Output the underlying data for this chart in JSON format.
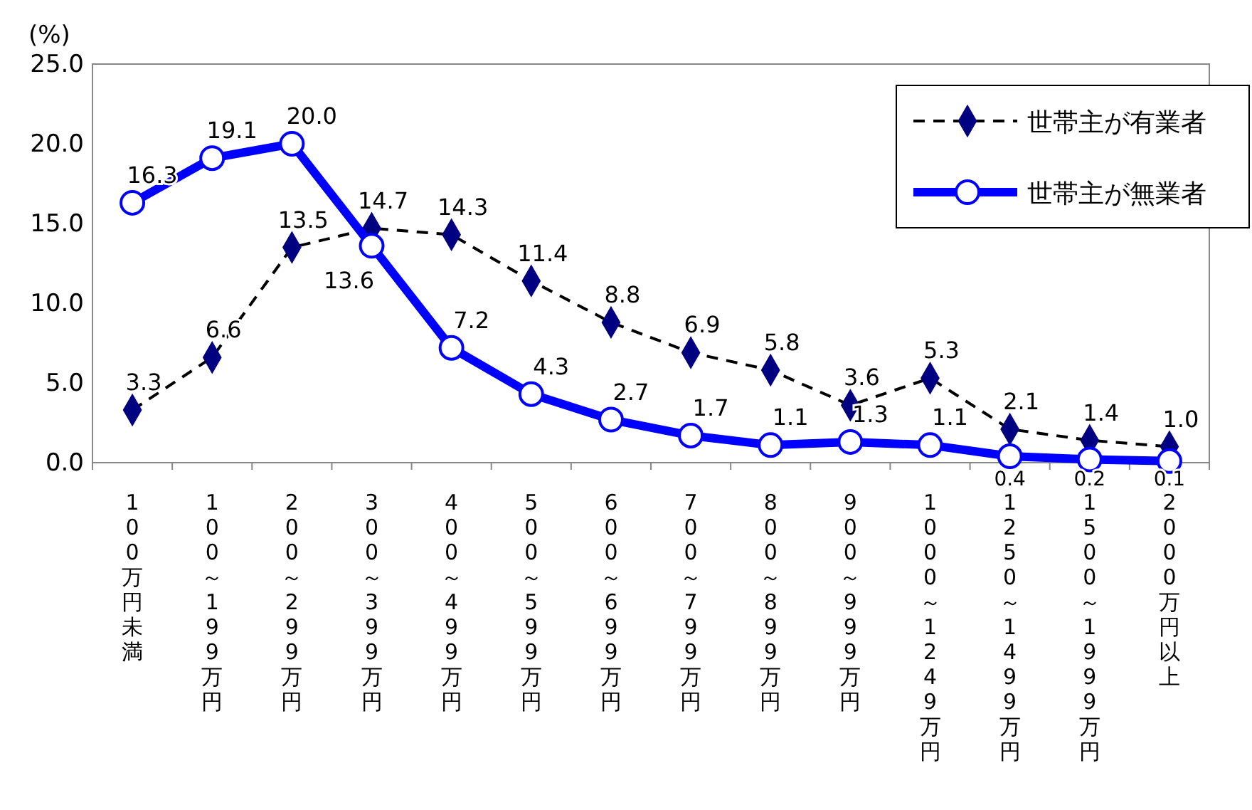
{
  "chart_data": {
    "type": "line",
    "ylabel": "(%)",
    "categories": [
      "100万円未満",
      "100～199万円",
      "200～299万円",
      "300～399万円",
      "400～499万円",
      "500～599万円",
      "600～699万円",
      "700～799万円",
      "800～899万円",
      "900～999万円",
      "1000～1249万円",
      "1250～1499万円",
      "1500～1999万円",
      "2000万円以上"
    ],
    "series": [
      {
        "name": "世帯主が有業者",
        "color": "#000080",
        "values": [
          3.3,
          6.6,
          13.5,
          14.7,
          14.3,
          11.4,
          8.8,
          6.9,
          5.8,
          3.6,
          5.3,
          2.1,
          1.4,
          1.0
        ],
        "marker": "diamond",
        "line_style": "dashed",
        "value_labels": [
          "3.3",
          "6.6",
          "13.5",
          "14.7",
          "14.3",
          "11.4",
          "8.8",
          "6.9",
          "5.8",
          "3.6",
          "5.3",
          "2.1",
          "1.4",
          "1.0"
        ]
      },
      {
        "name": "世帯主が無業者",
        "color": "#0000ff",
        "values": [
          16.3,
          19.1,
          20.0,
          13.6,
          7.2,
          4.3,
          2.7,
          1.7,
          1.1,
          1.3,
          1.1,
          0.4,
          0.2,
          0.1
        ],
        "marker": "circle",
        "line_style": "solid",
        "value_labels": [
          "16.3",
          "19.1",
          "20.0",
          "13.6",
          "7.2",
          "4.3",
          "2.7",
          "1.7",
          "1.1",
          "1.3",
          "1.1",
          "0.4",
          "0.2",
          "0.1"
        ]
      }
    ],
    "ylim": [
      0,
      25
    ],
    "yticks": [
      {
        "value": 0,
        "label": "0.0"
      },
      {
        "value": 5,
        "label": "5.0"
      },
      {
        "value": 10,
        "label": "10.0"
      },
      {
        "value": 15,
        "label": "15.0"
      },
      {
        "value": 20,
        "label": "20.0"
      },
      {
        "value": 25,
        "label": "25.0"
      }
    ],
    "grid": false,
    "legend": "top right"
  }
}
